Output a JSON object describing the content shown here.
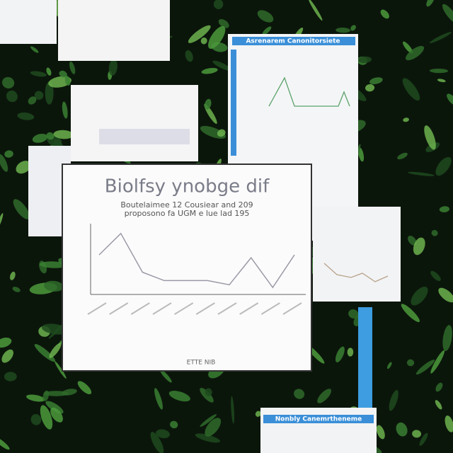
{
  "chart_data": {
    "type": "line",
    "title": "Biolfsy ynobge dif",
    "subtitle": [
      "Boutelaimee 12 Cousiear and 209",
      "proposono fa UGM e lue lad 195"
    ],
    "categories": [
      null,
      null,
      null,
      null,
      null,
      null,
      null,
      null,
      null,
      null
    ],
    "values": [
      57,
      88,
      32,
      20,
      20,
      20,
      14,
      53,
      10,
      57
    ],
    "ylim": [
      0,
      100
    ],
    "color": "#9a9aa6",
    "note": "ETTE NIB"
  },
  "cards": [
    {
      "title": "Asrenarem Canonitorsiete"
    },
    {
      "title": "Nonbly Canemrtheneme"
    }
  ]
}
